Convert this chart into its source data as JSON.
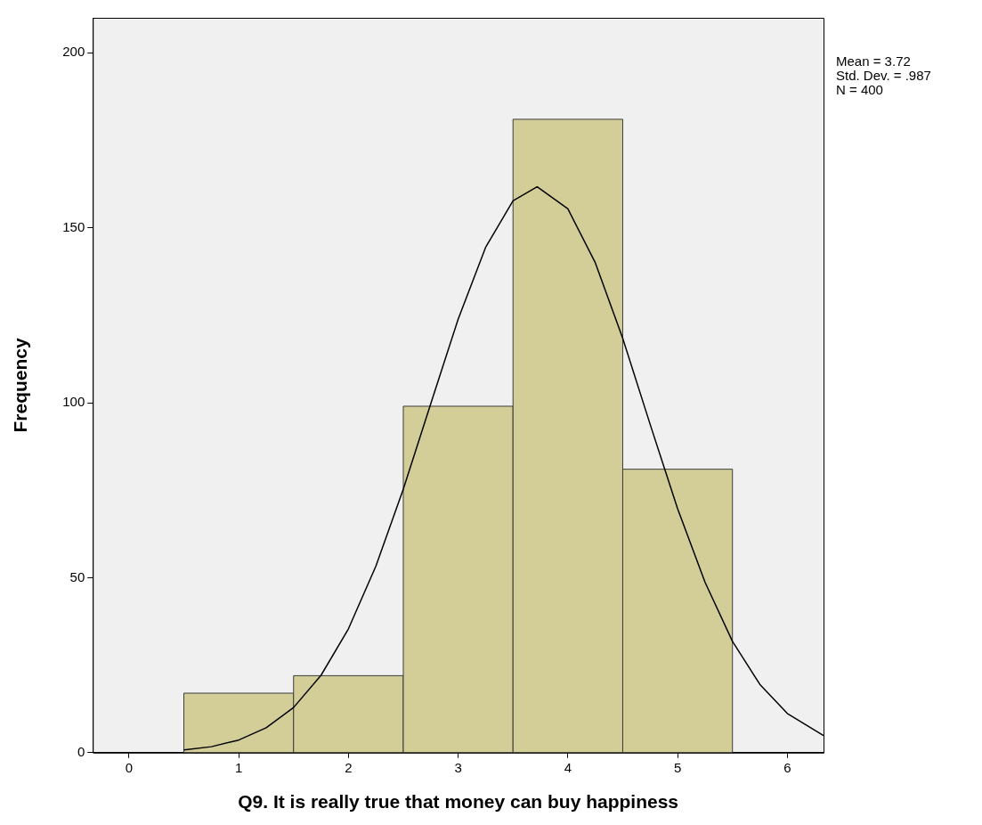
{
  "chart_data": {
    "type": "histogram",
    "xlabel": "Q9. It is really true that money can buy happiness",
    "ylabel": "Frequency",
    "bins": [
      0.5,
      1.5,
      2.5,
      3.5,
      4.5,
      5.5
    ],
    "values": [
      17,
      22,
      99,
      181,
      81
    ],
    "color": "#d3ce97",
    "series": [
      {
        "type": "line",
        "color": "#000000",
        "x": [
          0.5,
          0.75,
          1,
          1.25,
          1.5,
          1.75,
          2,
          2.25,
          2.5,
          2.75,
          3,
          3.25,
          3.5,
          3.72,
          4,
          4.25,
          4.5,
          4.75,
          5,
          5.25,
          5.5,
          5.75,
          6,
          6.33
        ],
        "values": [
          0.8,
          1.7,
          3.6,
          7.1,
          12.9,
          22.1,
          35.4,
          53.3,
          75.3,
          99.7,
          123.9,
          144.4,
          157.7,
          161.7,
          155.4,
          140,
          118.4,
          93.8,
          69.7,
          48.7,
          31.8,
          19.5,
          11.2,
          4.9
        ]
      }
    ],
    "xlim": [
      -0.33,
      6.33
    ],
    "ylim": [
      0,
      210
    ],
    "xticks": [
      0,
      1,
      2,
      3,
      4,
      5,
      6
    ],
    "yticks": [
      0,
      50,
      100,
      150,
      200
    ],
    "grid": false,
    "legend": false,
    "marker": "none",
    "annotations": [
      "Mean = 3.72",
      "Std. Dev. = .987",
      "N = 400"
    ]
  }
}
